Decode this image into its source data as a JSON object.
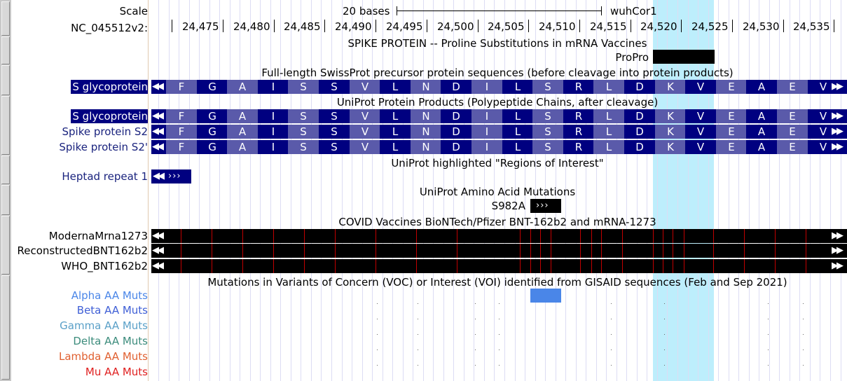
{
  "scale": {
    "label": "Scale",
    "bar_label": "20 bases",
    "assembly": "wuhCor1",
    "chrom_label": "NC_045512v2:",
    "ticks": [
      "24,475",
      "24,480",
      "24,485",
      "24,490",
      "24,495",
      "24,500",
      "24,505",
      "24,510",
      "24,515",
      "24,520",
      "24,525",
      "24,530",
      "24,535"
    ]
  },
  "tracks": {
    "proline": {
      "title": "SPIKE PROTEIN -- Proline Substitutions in mRNA Vaccines",
      "item": "ProPro"
    },
    "swissprot": {
      "title": "Full-length SwissProt precursor protein sequences (before cleavage into protein products)",
      "label": "S glycoprotein"
    },
    "products": {
      "title": "UniProt Protein Products (Polypeptide Chains, after cleavage)",
      "labels": [
        "S glycoprotein",
        "Spike protein S2",
        "Spike protein S2'"
      ]
    },
    "regions": {
      "title": "UniProt highlighted \"Regions of Interest\"",
      "label": "Heptad repeat 1"
    },
    "mutations": {
      "title": "UniProt Amino Acid Mutations",
      "item": "S982A"
    },
    "vaccines": {
      "title": "COVID Vaccines BioNTech/Pfizer BNT-162b2 and mRNA-1273",
      "labels": [
        "ModernaMrna1273",
        "ReconstructedBNT162b2",
        "WHO_BNT162b2"
      ]
    },
    "voc": {
      "title": "Mutations in Variants of Concern (VOC) or Interest (VOI) identified from GISAID sequences (Feb and Sep 2021)",
      "labels": [
        "Alpha AA Muts",
        "Beta AA Muts",
        "Gamma AA Muts",
        "Delta AA Muts",
        "Lambda AA Muts",
        "Mu AA Muts"
      ]
    }
  },
  "amino_acids": [
    "F",
    "G",
    "A",
    "I",
    "S",
    "S",
    "V",
    "L",
    "N",
    "D",
    "I",
    "L",
    "S",
    "R",
    "L",
    "D",
    "K",
    "V",
    "E",
    "A",
    "E",
    "V"
  ],
  "colors": {
    "aa_dark": "#000080",
    "aa_light": "#5a5aaa",
    "label_blue": "#1a237e",
    "highlight": "#bdeefc",
    "mutation_red": "#c00000",
    "alpha_block": "#4a86e8",
    "voc_label_colors": [
      "#4a86e8",
      "#3f5fd6",
      "#5aa0c8",
      "#3c8c7c",
      "#e06030",
      "#e02020"
    ]
  },
  "icons": {
    "left_arrow": "double-left-arrow-icon",
    "right_arrow": "double-right-arrow-icon",
    "strand": "chevron-strand-icon"
  }
}
